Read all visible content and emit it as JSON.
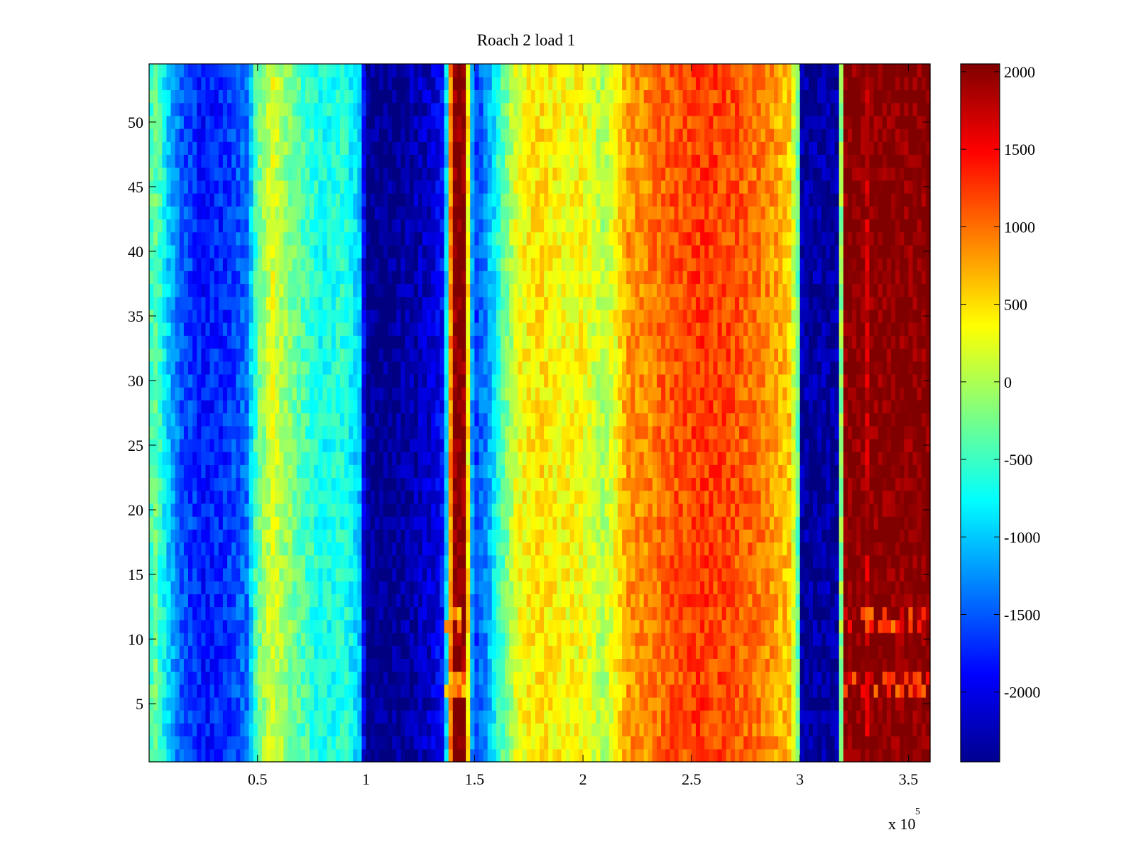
{
  "chart_data": {
    "type": "heatmap",
    "title": "Roach 2 load 1",
    "xlabel": "",
    "ylabel": "",
    "x_exponent_label": {
      "base": "x 10",
      "exponent": "5"
    },
    "xlim": [
      0,
      360000
    ],
    "ylim": [
      0.5,
      54.5
    ],
    "x_ticks": [
      {
        "value": 50000,
        "label": "0.5"
      },
      {
        "value": 100000,
        "label": "1"
      },
      {
        "value": 150000,
        "label": "1.5"
      },
      {
        "value": 200000,
        "label": "2"
      },
      {
        "value": 250000,
        "label": "2.5"
      },
      {
        "value": 300000,
        "label": "3"
      },
      {
        "value": 350000,
        "label": "3.5"
      }
    ],
    "y_ticks": [
      {
        "value": 5,
        "label": "5"
      },
      {
        "value": 10,
        "label": "10"
      },
      {
        "value": 15,
        "label": "15"
      },
      {
        "value": 20,
        "label": "20"
      },
      {
        "value": 25,
        "label": "25"
      },
      {
        "value": 30,
        "label": "30"
      },
      {
        "value": 35,
        "label": "35"
      },
      {
        "value": 40,
        "label": "40"
      },
      {
        "value": 45,
        "label": "45"
      },
      {
        "value": 50,
        "label": "50"
      }
    ],
    "rows": 54,
    "colormap": "jet",
    "clim": [
      -2450,
      2050
    ],
    "colorbar_ticks": [
      {
        "value": 2000,
        "label": "2000"
      },
      {
        "value": 1500,
        "label": "1500"
      },
      {
        "value": 1000,
        "label": "1000"
      },
      {
        "value": 500,
        "label": "500"
      },
      {
        "value": 0,
        "label": "0"
      },
      {
        "value": -500,
        "label": "-500"
      },
      {
        "value": -1000,
        "label": "-1000"
      },
      {
        "value": -1500,
        "label": "-1500"
      },
      {
        "value": -2000,
        "label": "-2000"
      }
    ],
    "column_profile": [
      {
        "x": 0,
        "value": -500
      },
      {
        "x": 3000,
        "value": -300
      },
      {
        "x": 8000,
        "value": -900
      },
      {
        "x": 15000,
        "value": -1500
      },
      {
        "x": 25000,
        "value": -1800
      },
      {
        "x": 35000,
        "value": -1700
      },
      {
        "x": 45000,
        "value": -1400
      },
      {
        "x": 50000,
        "value": -300
      },
      {
        "x": 57000,
        "value": 200
      },
      {
        "x": 63000,
        "value": -100
      },
      {
        "x": 70000,
        "value": -400
      },
      {
        "x": 80000,
        "value": -700
      },
      {
        "x": 90000,
        "value": -600
      },
      {
        "x": 97000,
        "value": -1000
      },
      {
        "x": 100000,
        "value": -2400
      },
      {
        "x": 110000,
        "value": -2400
      },
      {
        "x": 120000,
        "value": -2300
      },
      {
        "x": 130000,
        "value": -2100
      },
      {
        "x": 136000,
        "value": -1800
      },
      {
        "x": 138500,
        "value": 300
      },
      {
        "x": 140000,
        "value": 2050
      },
      {
        "x": 146000,
        "value": 2050
      },
      {
        "x": 147500,
        "value": -400
      },
      {
        "x": 150000,
        "value": -1700
      },
      {
        "x": 156000,
        "value": -1200
      },
      {
        "x": 162000,
        "value": -500
      },
      {
        "x": 170000,
        "value": 300
      },
      {
        "x": 180000,
        "value": 500
      },
      {
        "x": 190000,
        "value": 350
      },
      {
        "x": 200000,
        "value": 350
      },
      {
        "x": 210000,
        "value": 0
      },
      {
        "x": 216000,
        "value": 400
      },
      {
        "x": 220000,
        "value": 800
      },
      {
        "x": 230000,
        "value": 900
      },
      {
        "x": 240000,
        "value": 1100
      },
      {
        "x": 255000,
        "value": 1250
      },
      {
        "x": 270000,
        "value": 1150
      },
      {
        "x": 285000,
        "value": 900
      },
      {
        "x": 295000,
        "value": 600
      },
      {
        "x": 299000,
        "value": -300
      },
      {
        "x": 301000,
        "value": -2300
      },
      {
        "x": 318000,
        "value": -2300
      },
      {
        "x": 320000,
        "value": 2050
      },
      {
        "x": 329000,
        "value": 2050
      },
      {
        "x": 330000,
        "value": 1200
      },
      {
        "x": 331500,
        "value": 2050
      },
      {
        "x": 360000,
        "value": 2050
      }
    ],
    "row_variations": [
      {
        "rows": [
          1,
          12
        ],
        "x_range": [
          136000,
          148000
        ],
        "value": 800,
        "note_rows": [
          6,
          7,
          11,
          12
        ]
      },
      {
        "rows": [
          1,
          12
        ],
        "x_range": [
          320000,
          360000
        ],
        "value": 1300,
        "note_rows": [
          6,
          7,
          11,
          12
        ]
      }
    ],
    "grid": false,
    "legend": "colorbar-right"
  }
}
